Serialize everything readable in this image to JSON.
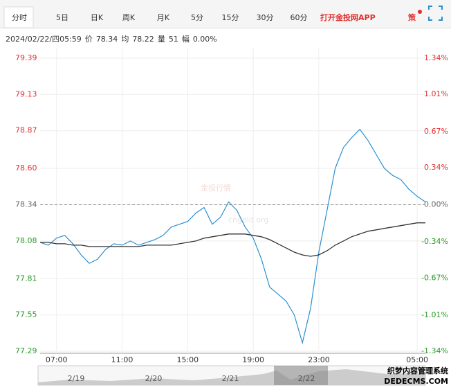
{
  "header": {
    "tabs": [
      "分时",
      "5日",
      "日K",
      "周K",
      "月K",
      "5分",
      "15分",
      "30分",
      "60分"
    ],
    "app": "打开金投网APP",
    "strategy": "策"
  },
  "info": [
    "2024/02/22/四05:59",
    "价",
    "78.34",
    "均",
    "78.22",
    "量",
    "51",
    "幅",
    "0.00%"
  ],
  "watermark": [
    "金投行情",
    "cngold.org"
  ],
  "navigator": {
    "dates": [
      "2/19",
      "2/20",
      "2/21",
      "2/22"
    ]
  },
  "corner_mark": [
    "织梦内容管理系统",
    "DEDECMS.COM"
  ],
  "chart_data": {
    "type": "line",
    "categories": [
      null,
      null,
      "07:00",
      null,
      null,
      null,
      null,
      null,
      null,
      null,
      "11:00",
      null,
      null,
      null,
      null,
      null,
      null,
      null,
      "15:00",
      null,
      null,
      null,
      null,
      null,
      null,
      null,
      "19:00",
      null,
      null,
      null,
      null,
      null,
      null,
      null,
      "23:00",
      null,
      null,
      null,
      null,
      null,
      null,
      null,
      null,
      null,
      null,
      null,
      "05:00",
      null
    ],
    "series": [
      {
        "name": "价",
        "color": "#2a8fd0",
        "values": [
          78.07,
          78.05,
          78.1,
          78.12,
          78.06,
          77.98,
          77.92,
          77.95,
          78.02,
          78.06,
          78.05,
          78.08,
          78.05,
          78.07,
          78.09,
          78.12,
          78.18,
          78.2,
          78.22,
          78.28,
          78.32,
          78.2,
          78.25,
          78.36,
          78.3,
          78.18,
          78.1,
          77.95,
          77.75,
          77.7,
          77.65,
          77.55,
          77.35,
          77.6,
          78.0,
          78.3,
          78.6,
          78.75,
          78.82,
          78.88,
          78.8,
          78.7,
          78.6,
          78.55,
          78.52,
          78.45,
          78.4,
          78.36
        ]
      },
      {
        "name": "均",
        "color": "#333333",
        "values": [
          78.07,
          78.07,
          78.06,
          78.06,
          78.05,
          78.05,
          78.04,
          78.04,
          78.04,
          78.04,
          78.04,
          78.04,
          78.04,
          78.05,
          78.05,
          78.05,
          78.05,
          78.06,
          78.07,
          78.08,
          78.1,
          78.11,
          78.12,
          78.13,
          78.13,
          78.13,
          78.12,
          78.11,
          78.09,
          78.06,
          78.03,
          78.0,
          77.98,
          77.97,
          77.98,
          78.01,
          78.05,
          78.08,
          78.11,
          78.13,
          78.15,
          78.16,
          78.17,
          78.18,
          78.19,
          78.2,
          78.21,
          78.21
        ]
      }
    ],
    "ylim": [
      77.29,
      79.39
    ],
    "yticks": [
      {
        "value": 79.39,
        "label": "79.39"
      },
      {
        "value": 79.13,
        "label": "79.13"
      },
      {
        "value": 78.87,
        "label": "78.87"
      },
      {
        "value": 78.6,
        "label": "78.60"
      },
      {
        "value": 78.34,
        "label": "78.34"
      },
      {
        "value": 78.08,
        "label": "78.08"
      },
      {
        "value": 77.81,
        "label": "77.81"
      },
      {
        "value": 77.55,
        "label": "77.55"
      },
      {
        "value": 77.29,
        "label": "77.29"
      }
    ],
    "y2lim": [
      -1.34,
      1.34
    ],
    "y2ticks": [
      {
        "value": 1.34,
        "label": "1.34%"
      },
      {
        "value": 1.01,
        "label": "1.01%"
      },
      {
        "value": 0.67,
        "label": "0.67%"
      },
      {
        "value": 0.34,
        "label": "0.34%"
      },
      {
        "value": 0,
        "label": "0.00%"
      },
      {
        "value": -0.34,
        "label": "-0.34%"
      },
      {
        "value": -0.67,
        "label": "-0.67%"
      },
      {
        "value": -1.01,
        "label": "-1.01%"
      },
      {
        "value": -1.34,
        "label": "-1.34%"
      }
    ],
    "reference_line": 78.34,
    "up_color": "#e03030",
    "down_color": "#2a9a2a",
    "flat_color": "#666666",
    "grid": true
  }
}
